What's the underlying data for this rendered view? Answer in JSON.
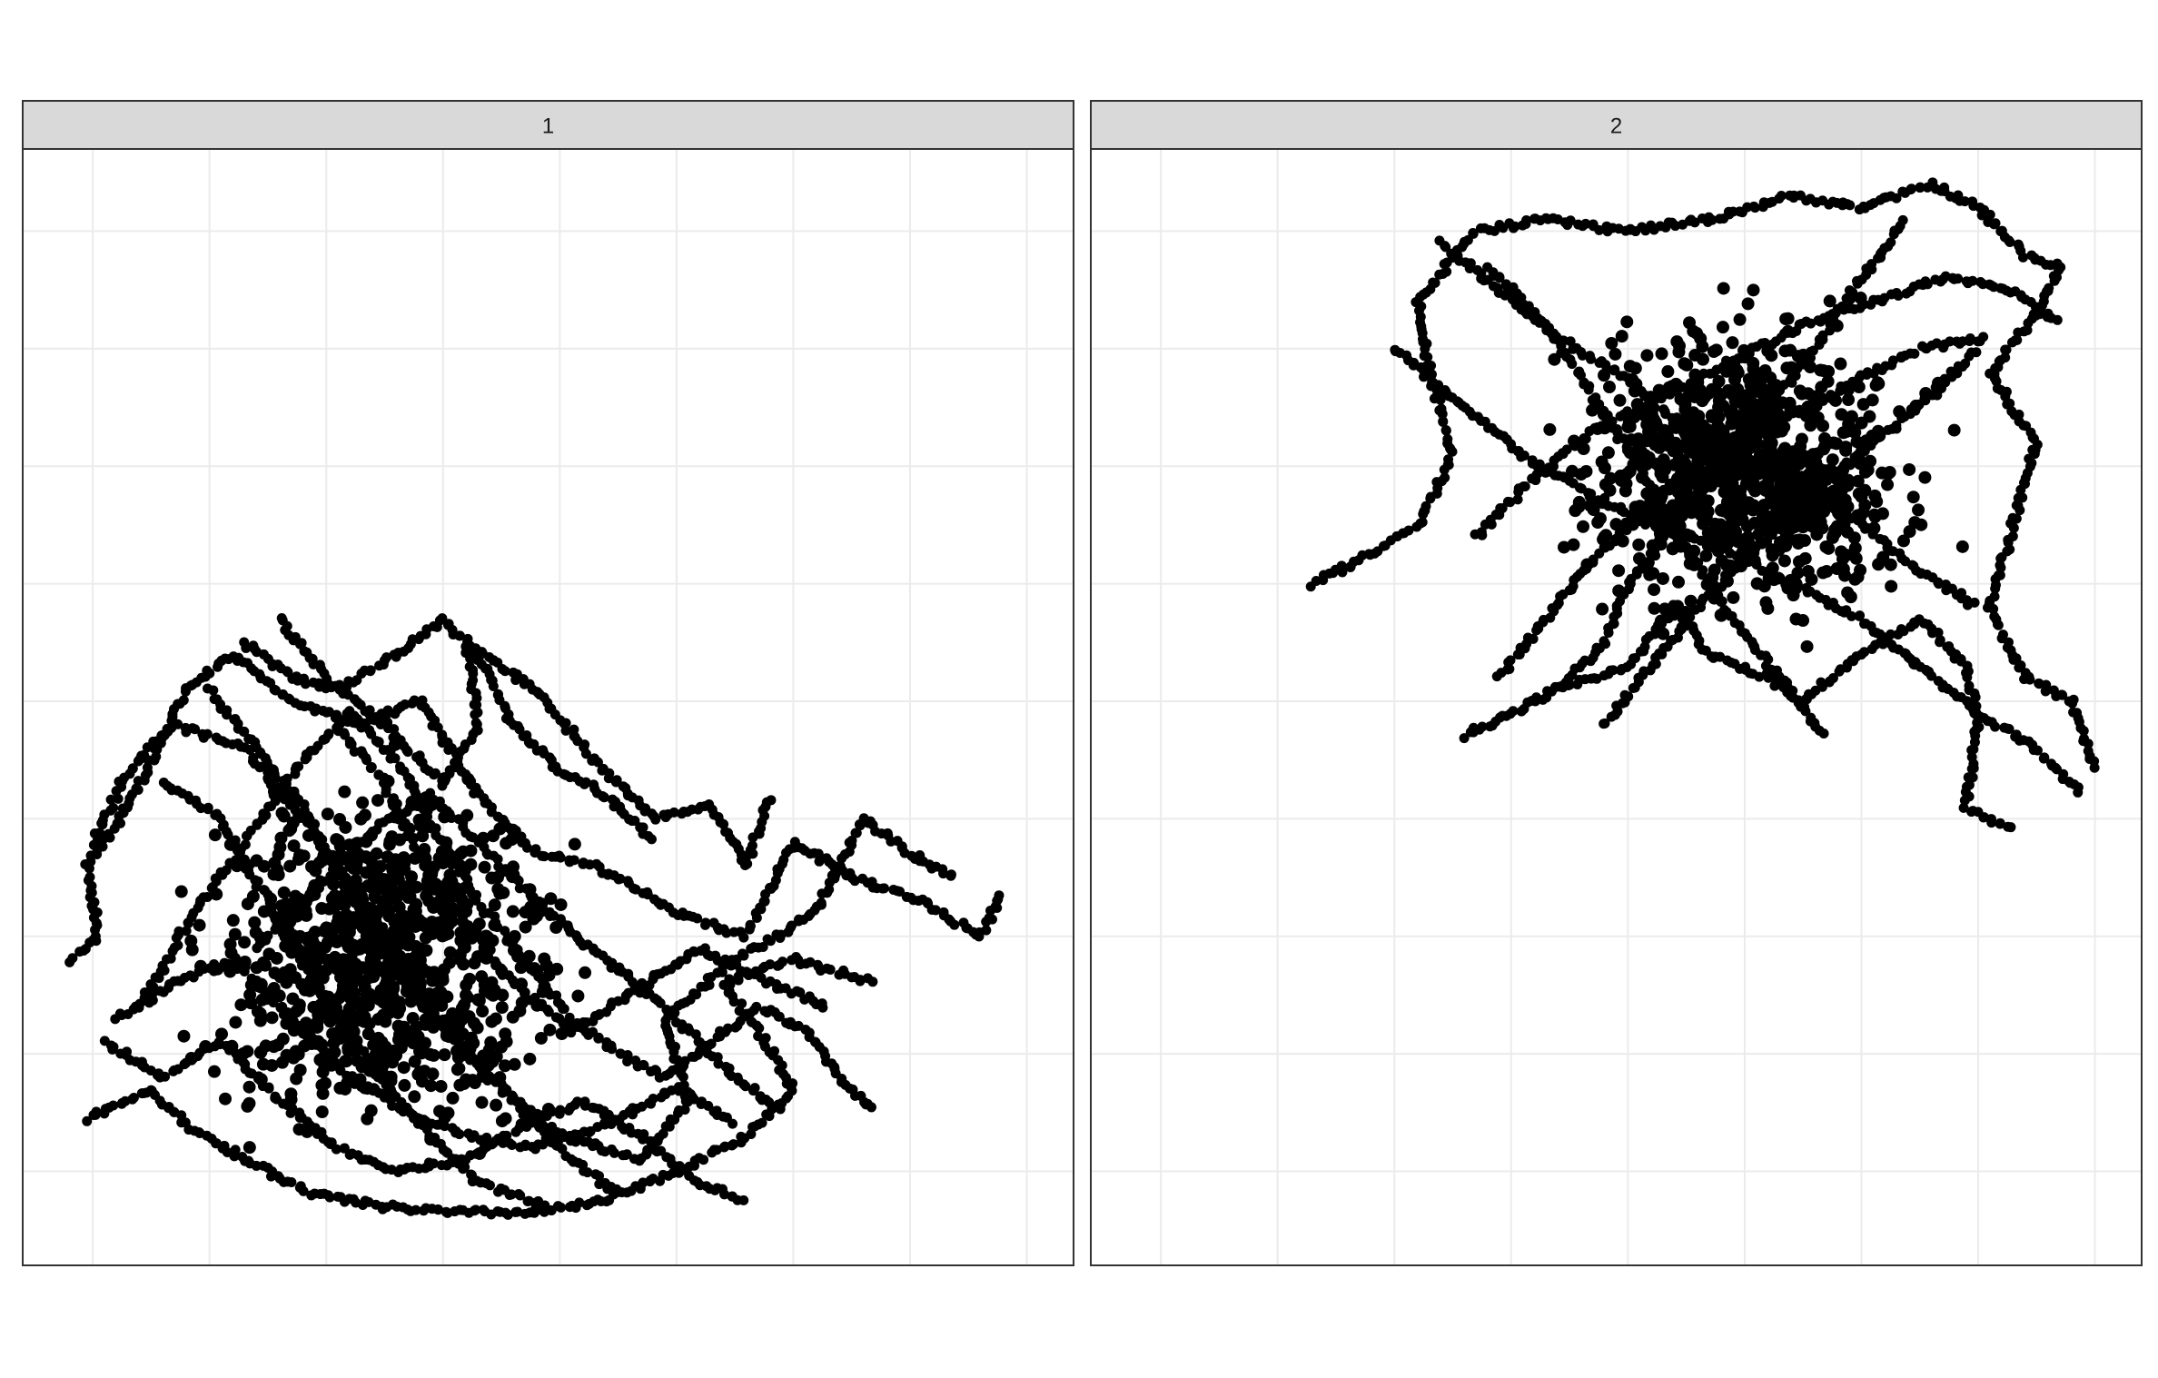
{
  "chart_data": [
    {
      "type": "scatter",
      "facet_label": "1",
      "grid": true,
      "series_color": "#000000",
      "grid_color": "#ebebeb",
      "strip_color": "#d9d9d9",
      "xlim": [
        0,
        9
      ],
      "ylim": [
        0,
        9.5
      ],
      "x_gridlines": [
        0,
        1,
        2,
        3,
        4,
        5,
        6,
        7,
        8
      ],
      "y_gridlines": [
        0.8,
        1.8,
        2.8,
        3.8,
        4.8,
        5.8,
        6.8,
        7.8,
        8.8
      ],
      "paths": [
        [
          [
            0.42,
            2.6
          ],
          [
            0.65,
            2.8
          ],
          [
            0.55,
            3.4
          ],
          [
            0.9,
            3.9
          ],
          [
            1.4,
            4.9
          ],
          [
            1.8,
            5.2
          ],
          [
            2.3,
            4.8
          ],
          [
            2.9,
            4.6
          ],
          [
            3.4,
            4.8
          ],
          [
            3.9,
            4.0
          ],
          [
            4.4,
            3.5
          ],
          [
            4.9,
            3.4
          ],
          [
            5.6,
            3.0
          ],
          [
            6.2,
            2.8
          ],
          [
            6.6,
            3.6
          ],
          [
            7.1,
            3.3
          ],
          [
            7.7,
            3.1
          ],
          [
            8.2,
            2.8
          ],
          [
            8.4,
            3.2
          ]
        ],
        [
          [
            0.55,
            1.25
          ],
          [
            1.1,
            1.5
          ],
          [
            1.4,
            1.2
          ],
          [
            1.9,
            0.9
          ],
          [
            2.5,
            0.6
          ],
          [
            3.1,
            0.5
          ],
          [
            3.7,
            0.45
          ],
          [
            4.4,
            0.45
          ],
          [
            5.0,
            0.55
          ],
          [
            5.6,
            0.8
          ],
          [
            6.2,
            1.1
          ],
          [
            6.6,
            1.5
          ],
          [
            6.3,
            2.0
          ],
          [
            6.0,
            2.4
          ],
          [
            6.6,
            2.6
          ],
          [
            7.3,
            2.4
          ]
        ],
        [
          [
            0.6,
            3.6
          ],
          [
            0.9,
            4.2
          ],
          [
            1.3,
            4.6
          ],
          [
            1.9,
            4.4
          ],
          [
            2.4,
            3.8
          ],
          [
            3.0,
            3.0
          ],
          [
            3.5,
            2.2
          ],
          [
            4.0,
            1.6
          ],
          [
            4.6,
            1.1
          ],
          [
            5.3,
            0.9
          ],
          [
            5.7,
            1.4
          ],
          [
            5.5,
            2.1
          ],
          [
            6.1,
            2.6
          ],
          [
            6.8,
            3.0
          ],
          [
            7.2,
            3.8
          ],
          [
            7.6,
            3.5
          ],
          [
            8.0,
            3.3
          ]
        ],
        [
          [
            1.0,
            2.2
          ],
          [
            1.4,
            2.9
          ],
          [
            1.9,
            3.6
          ],
          [
            2.4,
            4.3
          ],
          [
            2.8,
            4.7
          ],
          [
            3.2,
            4.3
          ],
          [
            3.6,
            3.6
          ],
          [
            3.9,
            3.1
          ],
          [
            4.3,
            2.6
          ],
          [
            4.7,
            2.1
          ],
          [
            5.1,
            1.8
          ],
          [
            5.5,
            1.6
          ],
          [
            5.9,
            1.9
          ],
          [
            6.3,
            2.2
          ],
          [
            6.7,
            2.0
          ],
          [
            7.0,
            1.6
          ],
          [
            7.3,
            1.3
          ]
        ],
        [
          [
            2.2,
            5.5
          ],
          [
            2.6,
            5.0
          ],
          [
            3.1,
            4.6
          ],
          [
            3.6,
            4.1
          ],
          [
            3.9,
            4.6
          ],
          [
            3.8,
            5.3
          ],
          [
            4.4,
            4.9
          ],
          [
            4.9,
            4.3
          ],
          [
            5.4,
            3.8
          ],
          [
            5.9,
            3.9
          ],
          [
            6.2,
            3.4
          ],
          [
            6.4,
            4.0
          ]
        ],
        [
          [
            0.7,
            1.9
          ],
          [
            1.2,
            1.6
          ],
          [
            1.7,
            1.9
          ],
          [
            2.2,
            1.4
          ],
          [
            2.7,
            1.0
          ],
          [
            3.2,
            0.8
          ],
          [
            3.8,
            0.9
          ],
          [
            4.3,
            1.2
          ],
          [
            4.8,
            1.4
          ],
          [
            5.3,
            1.1
          ],
          [
            5.8,
            0.7
          ],
          [
            6.2,
            0.55
          ]
        ],
        [
          [
            1.6,
            4.9
          ],
          [
            2.0,
            4.4
          ],
          [
            2.4,
            3.9
          ],
          [
            2.8,
            3.2
          ],
          [
            3.2,
            2.5
          ],
          [
            3.7,
            1.9
          ],
          [
            4.2,
            1.4
          ],
          [
            4.7,
            0.9
          ],
          [
            5.1,
            0.6
          ]
        ],
        [
          [
            2.0,
            2.7
          ],
          [
            2.5,
            3.2
          ],
          [
            3.0,
            3.7
          ],
          [
            3.5,
            4.0
          ],
          [
            4.0,
            3.5
          ],
          [
            4.5,
            3.0
          ],
          [
            5.0,
            2.6
          ],
          [
            5.5,
            2.2
          ],
          [
            6.0,
            1.7
          ],
          [
            6.5,
            1.3
          ]
        ],
        [
          [
            1.2,
            4.1
          ],
          [
            1.7,
            3.8
          ],
          [
            2.1,
            3.1
          ],
          [
            2.5,
            2.4
          ],
          [
            2.9,
            1.8
          ],
          [
            3.4,
            1.2
          ],
          [
            3.9,
            0.7
          ],
          [
            4.5,
            0.5
          ]
        ],
        [
          [
            0.8,
            2.1
          ],
          [
            1.3,
            2.4
          ],
          [
            1.8,
            2.6
          ],
          [
            2.3,
            2.1
          ],
          [
            2.8,
            1.6
          ],
          [
            3.3,
            1.3
          ],
          [
            3.8,
            1.1
          ],
          [
            4.4,
            1.0
          ],
          [
            5.0,
            1.2
          ],
          [
            5.6,
            1.5
          ],
          [
            6.1,
            1.2
          ]
        ],
        [
          [
            2.7,
            4.6
          ],
          [
            3.1,
            4.1
          ],
          [
            3.4,
            3.5
          ],
          [
            3.8,
            2.9
          ],
          [
            4.2,
            2.4
          ],
          [
            4.7,
            2.0
          ],
          [
            5.2,
            2.3
          ],
          [
            5.8,
            2.7
          ],
          [
            6.4,
            2.4
          ],
          [
            6.9,
            2.2
          ]
        ],
        [
          [
            1.9,
            5.3
          ],
          [
            2.3,
            5.0
          ],
          [
            2.7,
            4.9
          ],
          [
            3.2,
            5.2
          ],
          [
            3.6,
            5.5
          ],
          [
            3.9,
            5.2
          ],
          [
            4.2,
            4.6
          ],
          [
            4.6,
            4.2
          ],
          [
            5.0,
            4.0
          ],
          [
            5.4,
            3.6
          ]
        ]
      ],
      "cloud": {
        "cx": 3.1,
        "cy": 2.6,
        "rx": 1.9,
        "ry": 1.8
      }
    },
    {
      "type": "scatter",
      "facet_label": "2",
      "grid": true,
      "series_color": "#000000",
      "grid_color": "#ebebeb",
      "strip_color": "#d9d9d9",
      "xlim": [
        0,
        9
      ],
      "ylim": [
        0,
        9.5
      ],
      "x_gridlines": [
        0,
        1,
        2,
        3,
        4,
        5,
        6,
        7,
        8
      ],
      "y_gridlines": [
        0.8,
        1.8,
        2.8,
        3.8,
        4.8,
        5.8,
        6.8,
        7.8,
        8.8
      ],
      "paths": [
        [
          [
            1.9,
            5.8
          ],
          [
            2.3,
            6.0
          ],
          [
            2.8,
            6.3
          ],
          [
            3.1,
            6.9
          ],
          [
            2.9,
            7.6
          ],
          [
            2.8,
            8.2
          ],
          [
            3.3,
            8.8
          ],
          [
            3.9,
            8.9
          ],
          [
            4.6,
            8.8
          ],
          [
            5.3,
            8.9
          ],
          [
            6.0,
            9.1
          ],
          [
            6.6,
            9.0
          ],
          [
            7.2,
            9.2
          ],
          [
            7.6,
            9.0
          ],
          [
            8.0,
            8.6
          ],
          [
            8.3,
            8.5
          ],
          [
            8.1,
            8.1
          ],
          [
            7.7,
            7.6
          ],
          [
            8.1,
            7.0
          ],
          [
            7.9,
            6.3
          ],
          [
            7.7,
            5.6
          ],
          [
            8.0,
            5.0
          ],
          [
            8.4,
            4.8
          ],
          [
            8.6,
            4.2
          ]
        ],
        [
          [
            3.2,
            4.5
          ],
          [
            3.6,
            4.7
          ],
          [
            4.0,
            4.9
          ],
          [
            4.6,
            5.1
          ],
          [
            5.0,
            5.6
          ],
          [
            5.3,
            5.2
          ],
          [
            5.8,
            5.0
          ],
          [
            6.1,
            4.8
          ],
          [
            6.6,
            5.2
          ],
          [
            7.1,
            5.5
          ],
          [
            7.5,
            5.1
          ],
          [
            7.6,
            4.6
          ],
          [
            7.5,
            3.9
          ],
          [
            7.9,
            3.7
          ]
        ],
        [
          [
            2.6,
            7.8
          ],
          [
            3.2,
            7.3
          ],
          [
            3.7,
            6.9
          ],
          [
            4.2,
            6.6
          ],
          [
            4.8,
            6.3
          ],
          [
            5.4,
            6.1
          ],
          [
            6.0,
            5.8
          ],
          [
            6.6,
            5.5
          ],
          [
            7.1,
            5.1
          ],
          [
            7.6,
            4.7
          ],
          [
            8.1,
            4.4
          ],
          [
            8.5,
            4.0
          ]
        ],
        [
          [
            3.0,
            8.7
          ],
          [
            3.5,
            8.3
          ],
          [
            4.0,
            7.9
          ],
          [
            4.5,
            7.6
          ],
          [
            5.0,
            7.2
          ],
          [
            5.6,
            6.9
          ],
          [
            6.1,
            6.6
          ],
          [
            6.6,
            6.3
          ],
          [
            7.1,
            5.9
          ],
          [
            7.6,
            5.6
          ]
        ],
        [
          [
            3.3,
            6.2
          ],
          [
            3.8,
            6.7
          ],
          [
            4.3,
            7.1
          ],
          [
            4.9,
            7.4
          ],
          [
            5.5,
            7.7
          ],
          [
            6.1,
            8.0
          ],
          [
            6.7,
            8.2
          ],
          [
            7.3,
            8.4
          ],
          [
            7.9,
            8.3
          ],
          [
            8.3,
            8.0
          ]
        ],
        [
          [
            4.0,
            4.9
          ],
          [
            4.4,
            5.3
          ],
          [
            4.6,
            5.8
          ],
          [
            5.0,
            6.3
          ],
          [
            5.4,
            6.8
          ],
          [
            5.8,
            7.3
          ],
          [
            6.2,
            7.8
          ],
          [
            6.6,
            8.4
          ],
          [
            7.0,
            8.9
          ]
        ],
        [
          [
            3.4,
            8.5
          ],
          [
            3.9,
            8.0
          ],
          [
            4.3,
            7.4
          ],
          [
            4.7,
            6.8
          ],
          [
            5.1,
            6.1
          ],
          [
            5.5,
            5.5
          ],
          [
            5.9,
            5.0
          ],
          [
            6.3,
            4.5
          ]
        ],
        [
          [
            3.5,
            5.0
          ],
          [
            3.9,
            5.5
          ],
          [
            4.3,
            6.0
          ],
          [
            4.8,
            6.5
          ],
          [
            5.3,
            6.9
          ],
          [
            5.9,
            7.2
          ],
          [
            6.5,
            7.5
          ],
          [
            7.1,
            7.8
          ],
          [
            7.7,
            7.9
          ]
        ],
        [
          [
            4.4,
            4.6
          ],
          [
            4.8,
            5.1
          ],
          [
            5.2,
            5.6
          ],
          [
            5.7,
            6.1
          ],
          [
            6.2,
            6.6
          ],
          [
            6.7,
            7.0
          ],
          [
            7.2,
            7.4
          ],
          [
            7.6,
            7.8
          ]
        ]
      ],
      "cloud": {
        "cx": 5.6,
        "cy": 6.8,
        "rx": 1.8,
        "ry": 1.6
      }
    }
  ]
}
